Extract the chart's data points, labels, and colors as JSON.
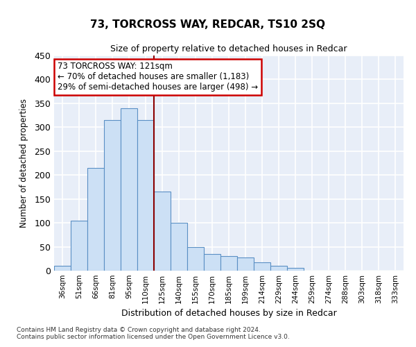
{
  "title1": "73, TORCROSS WAY, REDCAR, TS10 2SQ",
  "title2": "Size of property relative to detached houses in Redcar",
  "xlabel": "Distribution of detached houses by size in Redcar",
  "ylabel": "Number of detached properties",
  "categories": [
    "36sqm",
    "51sqm",
    "66sqm",
    "81sqm",
    "95sqm",
    "110sqm",
    "125sqm",
    "140sqm",
    "155sqm",
    "170sqm",
    "185sqm",
    "199sqm",
    "214sqm",
    "229sqm",
    "244sqm",
    "259sqm",
    "274sqm",
    "288sqm",
    "303sqm",
    "318sqm",
    "333sqm"
  ],
  "values": [
    10,
    105,
    215,
    315,
    340,
    315,
    165,
    100,
    50,
    35,
    30,
    27,
    18,
    10,
    6,
    0,
    0,
    0,
    0,
    0,
    0
  ],
  "bar_color": "#cce0f5",
  "bar_edge_color": "#5a8fc4",
  "vline_color": "#8b0000",
  "annotation_text": "73 TORCROSS WAY: 121sqm\n← 70% of detached houses are smaller (1,183)\n29% of semi-detached houses are larger (498) →",
  "annotation_box_color": "#ffffff",
  "annotation_box_edge": "#cc0000",
  "ylim": [
    0,
    450
  ],
  "yticks": [
    0,
    50,
    100,
    150,
    200,
    250,
    300,
    350,
    400,
    450
  ],
  "bg_color": "#e8eef8",
  "grid_color": "#ffffff",
  "footer1": "Contains HM Land Registry data © Crown copyright and database right 2024.",
  "footer2": "Contains public sector information licensed under the Open Government Licence v3.0."
}
